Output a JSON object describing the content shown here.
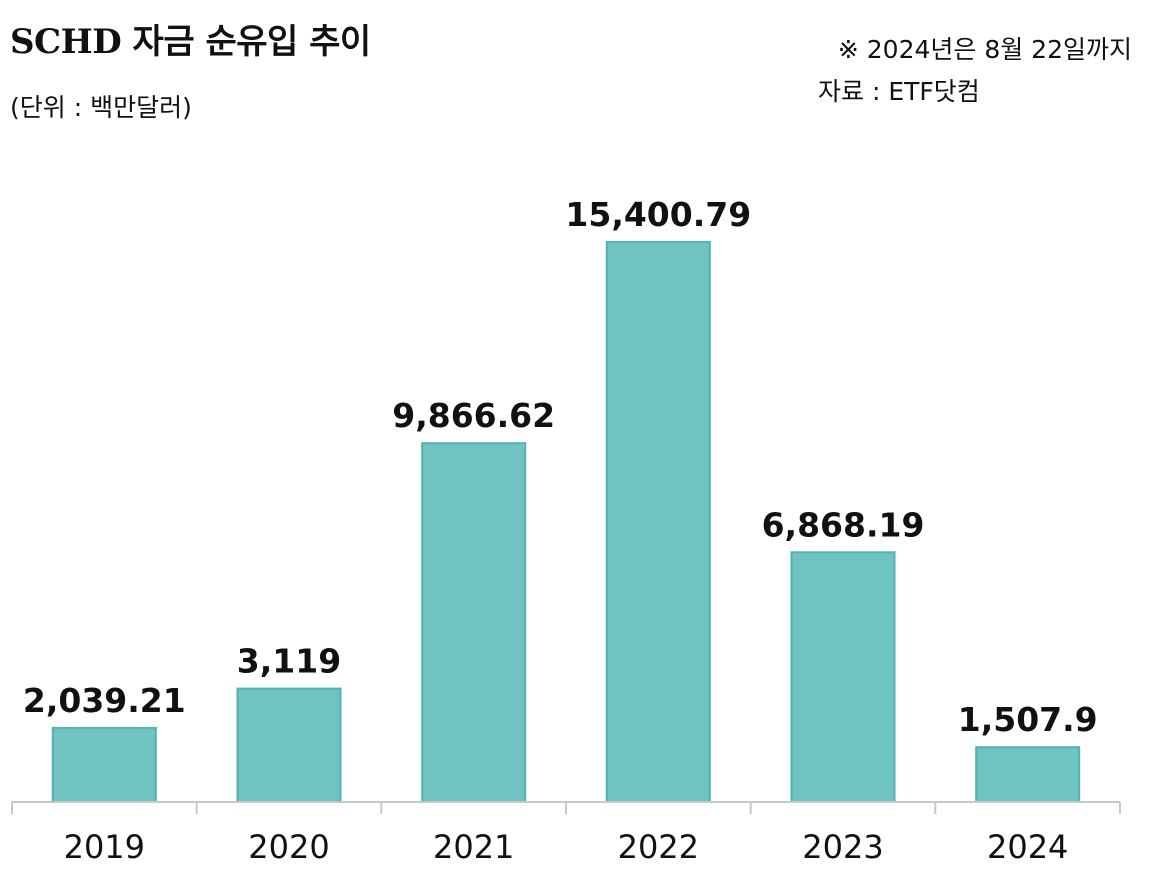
{
  "header": {
    "title": "SCHD 자금 순유입 추이",
    "unit": "(단위 : 백만달러)",
    "note": "※ 2024년은 8월 22일까지",
    "source": "자료 : ETF닷컴"
  },
  "colors": {
    "bar_fill": "#6fc3c0",
    "bar_stroke": "#4fb3ae"
  },
  "chart_data": {
    "type": "bar",
    "title": "SCHD 자금 순유입 추이",
    "unit": "(단위 : 백만달러)",
    "categories": [
      "2019",
      "2020",
      "2021",
      "2022",
      "2023",
      "2024"
    ],
    "values": [
      2039.21,
      3119,
      9866.62,
      15400.79,
      6868.19,
      1507.9
    ],
    "value_labels": [
      "2,039.21",
      "3,119",
      "9,866.62",
      "15,400.79",
      "6,868.19",
      "1,507.9"
    ],
    "xlabel": "",
    "ylabel": "",
    "ylim": [
      0,
      15400.79
    ],
    "grid": false,
    "legend": "none"
  }
}
